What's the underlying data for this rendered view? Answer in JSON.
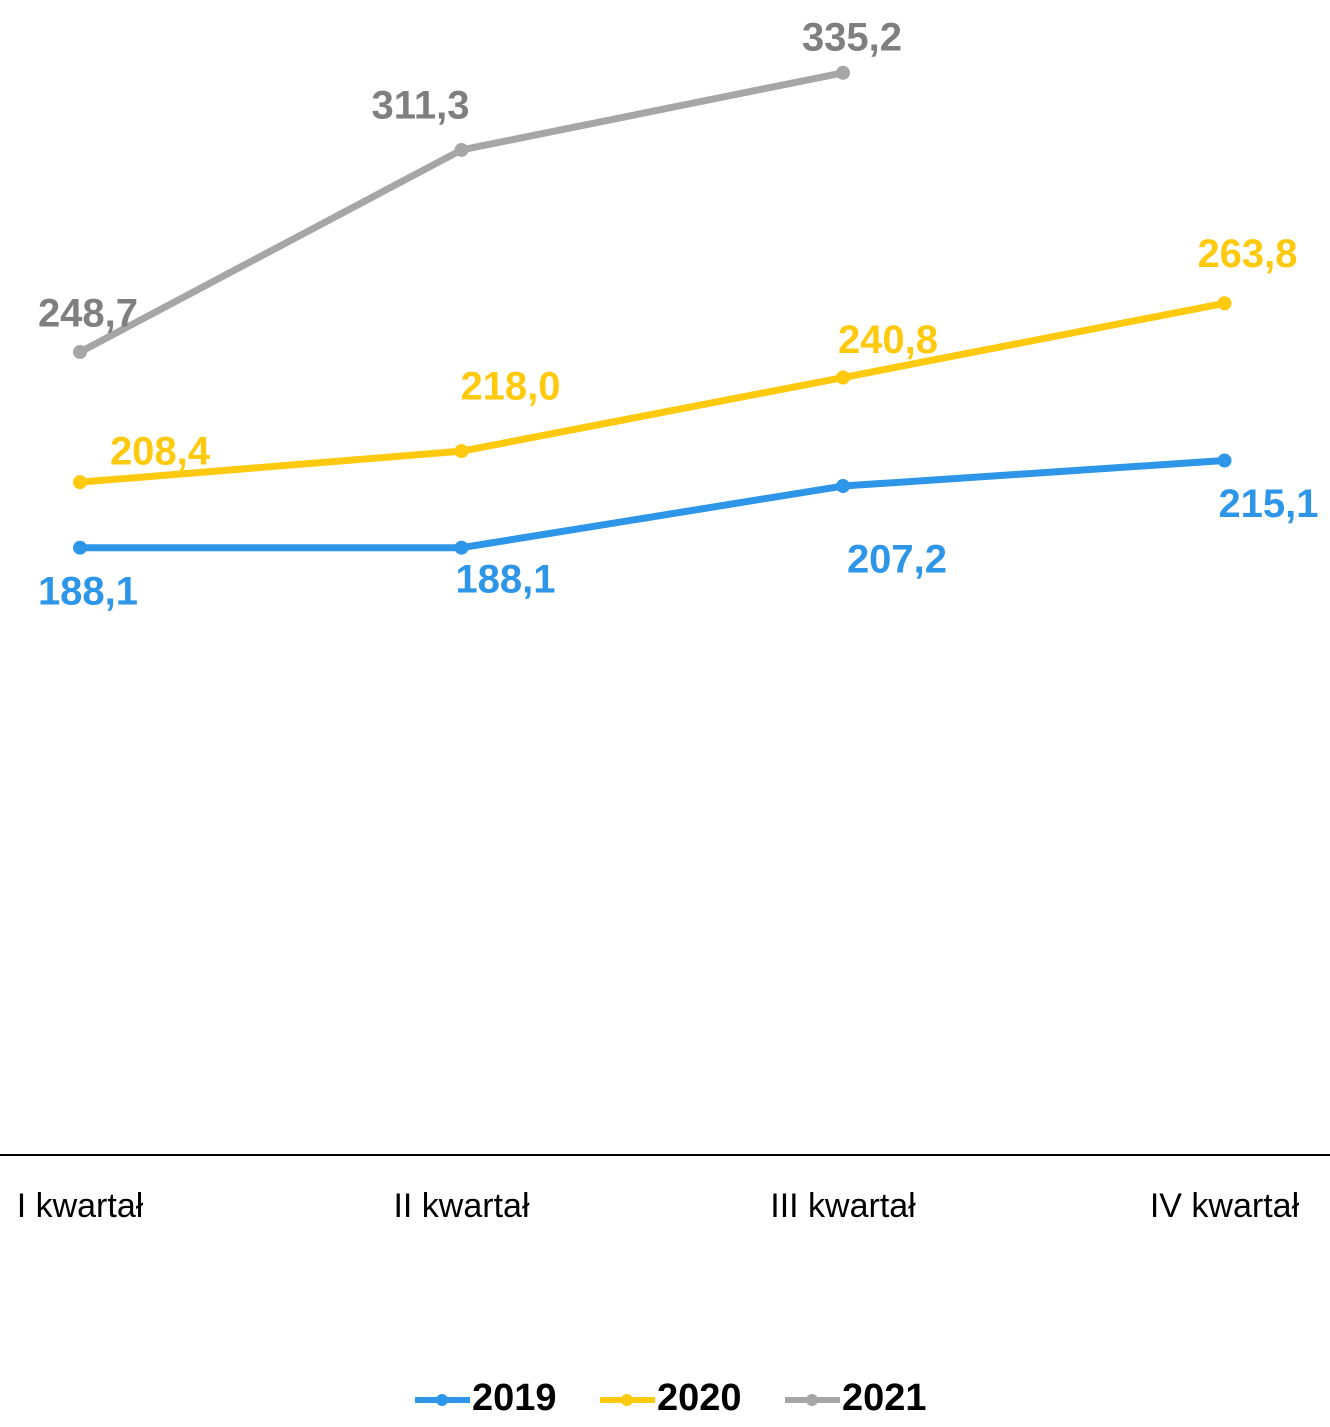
{
  "chart_data": {
    "type": "line",
    "categories": [
      "I kwartał",
      "II kwartał",
      "III kwartał",
      "IV kwartał"
    ],
    "series": [
      {
        "name": "2019",
        "color": "#2e96e8",
        "values": [
          188.1,
          188.1,
          207.2,
          215.1
        ],
        "value_labels": [
          "188,1",
          "188,1",
          "207,2",
          "215,1"
        ]
      },
      {
        "name": "2020",
        "color": "#ffc90e",
        "values": [
          208.4,
          218.0,
          240.8,
          263.8
        ],
        "value_labels": [
          "208,4",
          "218,0",
          "240,8",
          "263,8"
        ]
      },
      {
        "name": "2021",
        "color": "#a6a6a6",
        "values": [
          248.7,
          311.3,
          335.2,
          null
        ],
        "value_labels": [
          "248,7",
          "311,3",
          "335,2",
          null
        ]
      }
    ],
    "ylim": [
      0,
      350
    ],
    "legend": "bottom"
  }
}
